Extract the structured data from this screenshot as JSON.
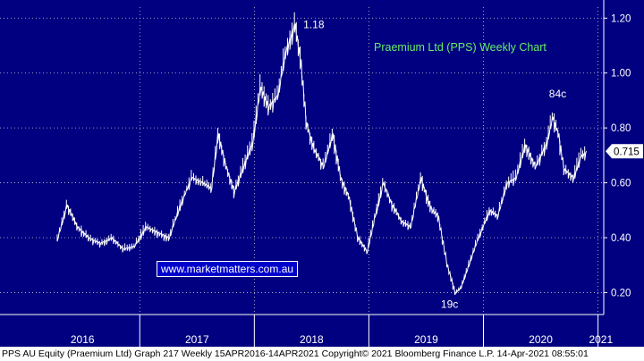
{
  "colors": {
    "background": "#000080",
    "price_line": "#ffffff",
    "grid": "#cccccc",
    "title": "#66ee66",
    "last_price_tag_bg": "#ffffff"
  },
  "watermark": "www.marketmatters.com.au",
  "footer": "PPS AU Equity (Praemium Ltd) Graph 217  Weekly 15APR2016-14APR2021  Copyright© 2021 Bloomberg Finance L.P.  14-Apr-2021 08:55:01",
  "chart_data": {
    "type": "line",
    "title": "Praemium Ltd (PPS) Weekly Chart",
    "xlabel": "",
    "ylabel": "",
    "x_ticks": [
      "2016",
      "2017",
      "2018",
      "2019",
      "2020",
      "2021"
    ],
    "y_ticks": [
      "0.20",
      "0.40",
      "0.60",
      "0.80",
      "1.00",
      "1.20"
    ],
    "ylim": [
      0.12,
      1.24
    ],
    "y_axis_position": "right",
    "grid": true,
    "last_price": "0.715",
    "annotations": [
      {
        "label": "1.18",
        "x": 2018.35,
        "y": 1.18
      },
      {
        "label": "84c",
        "x": 2020.65,
        "y": 0.84
      },
      {
        "label": "19c",
        "x": 2019.8,
        "y": 0.19
      }
    ],
    "series": [
      {
        "x": [
          2016.28,
          2016.36,
          2016.45,
          2016.55,
          2016.65,
          2016.75,
          2016.85,
          2016.95,
          2017.05,
          2017.15,
          2017.25,
          2017.35,
          2017.45,
          2017.55,
          2017.62,
          2017.68,
          2017.75,
          2017.82,
          2017.9,
          2017.98,
          2018.05,
          2018.12,
          2018.2,
          2018.27,
          2018.35,
          2018.4,
          2018.45,
          2018.52,
          2018.6,
          2018.68,
          2018.75,
          2018.82,
          2018.9,
          2018.98,
          2019.05,
          2019.12,
          2019.2,
          2019.28,
          2019.36,
          2019.45,
          2019.5,
          2019.55,
          2019.6,
          2019.68,
          2019.75,
          2019.8,
          2019.85,
          2019.95,
          2020.05,
          2020.12,
          2020.2,
          2020.28,
          2020.36,
          2020.45,
          2020.55,
          2020.6,
          2020.65,
          2020.7,
          2020.78,
          2020.85,
          2020.9
        ],
        "y": [
          0.4,
          0.52,
          0.44,
          0.4,
          0.38,
          0.4,
          0.36,
          0.37,
          0.44,
          0.42,
          0.4,
          0.52,
          0.62,
          0.6,
          0.58,
          0.78,
          0.66,
          0.57,
          0.66,
          0.75,
          0.95,
          0.88,
          0.92,
          1.08,
          1.18,
          1.05,
          0.82,
          0.72,
          0.66,
          0.78,
          0.62,
          0.55,
          0.4,
          0.35,
          0.48,
          0.6,
          0.52,
          0.46,
          0.44,
          0.62,
          0.55,
          0.5,
          0.48,
          0.3,
          0.2,
          0.22,
          0.28,
          0.4,
          0.5,
          0.48,
          0.6,
          0.62,
          0.74,
          0.66,
          0.75,
          0.84,
          0.78,
          0.65,
          0.62,
          0.7,
          0.715
        ]
      }
    ]
  }
}
